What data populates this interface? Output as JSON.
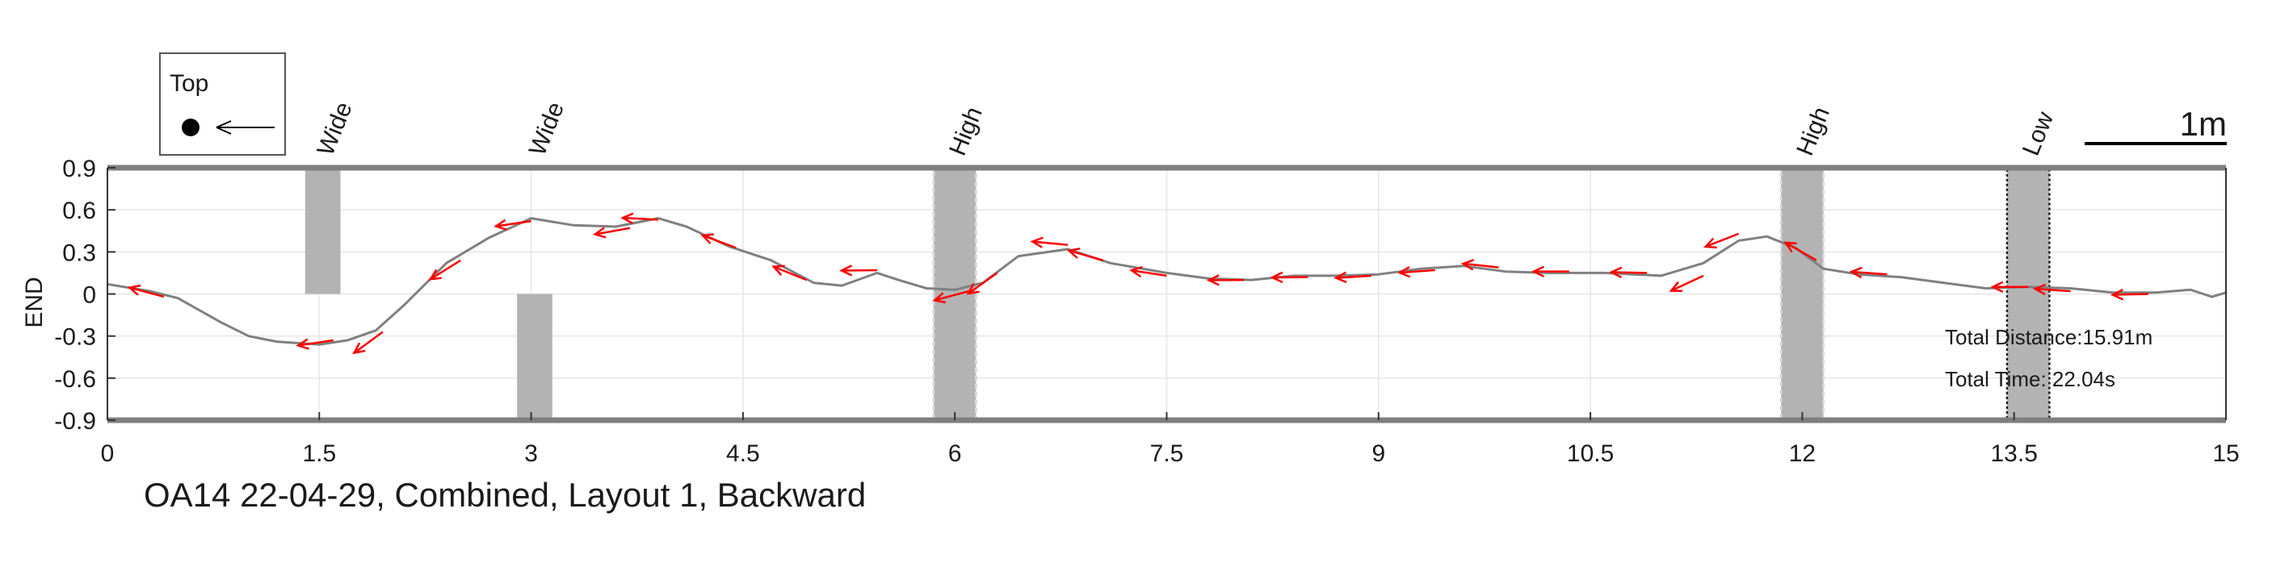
{
  "chart_data": {
    "type": "line",
    "title": "OA14 22-04-29, Combined, Layout 1, Backward",
    "xlabel": "",
    "ylabel": "END",
    "xlim": [
      0,
      15
    ],
    "ylim": [
      -0.9,
      0.9
    ],
    "xticks": [
      0,
      1.5,
      3,
      4.5,
      6,
      7.5,
      9,
      10.5,
      12,
      13.5,
      15
    ],
    "xtick_labels": [
      "0",
      "1.5",
      "3",
      "4.5",
      "6",
      "7.5",
      "9",
      "10.5",
      "12",
      "13.5",
      "15"
    ],
    "yticks": [
      0.9,
      0.6,
      0.3,
      0,
      -0.3,
      -0.6,
      -0.9
    ],
    "ytick_labels": [
      "0.9",
      "0.6",
      "0.3",
      "0",
      "-0.3",
      "-0.6",
      "-0.9"
    ],
    "grid": true,
    "series": [
      {
        "line_color": "#808080",
        "x": [
          0,
          0.3,
          0.5,
          0.8,
          1.0,
          1.2,
          1.5,
          1.7,
          1.9,
          2.1,
          2.4,
          2.7,
          3.0,
          3.3,
          3.6,
          3.9,
          4.1,
          4.4,
          4.7,
          5.0,
          5.2,
          5.45,
          5.6,
          5.8,
          6.0,
          6.2,
          6.45,
          6.8,
          7.1,
          7.5,
          7.8,
          8.1,
          8.4,
          8.7,
          9.0,
          9.3,
          9.6,
          9.9,
          10.2,
          10.6,
          11.0,
          11.3,
          11.55,
          11.75,
          11.95,
          12.15,
          12.4,
          12.7,
          13.0,
          13.3,
          13.6,
          13.9,
          14.2,
          14.5,
          14.75,
          14.9,
          15.0
        ],
        "y": [
          0.07,
          0.02,
          -0.03,
          -0.2,
          -0.3,
          -0.34,
          -0.36,
          -0.33,
          -0.26,
          -0.08,
          0.22,
          0.4,
          0.54,
          0.49,
          0.48,
          0.54,
          0.48,
          0.34,
          0.24,
          0.08,
          0.06,
          0.15,
          0.1,
          0.04,
          0.03,
          0.08,
          0.27,
          0.32,
          0.22,
          0.15,
          0.11,
          0.1,
          0.13,
          0.13,
          0.14,
          0.18,
          0.2,
          0.16,
          0.15,
          0.15,
          0.13,
          0.22,
          0.38,
          0.41,
          0.33,
          0.18,
          0.14,
          0.12,
          0.08,
          0.04,
          0.05,
          0.04,
          0.01,
          0.01,
          0.03,
          -0.02,
          0.01
        ]
      }
    ],
    "arrows": {
      "color": "#ff0000",
      "direction": "backward",
      "points": [
        [
          0.4,
          -0.02
        ],
        [
          1.6,
          -0.33
        ],
        [
          1.95,
          -0.27
        ],
        [
          2.5,
          0.24
        ],
        [
          3.0,
          0.52
        ],
        [
          3.7,
          0.47
        ],
        [
          3.9,
          0.53
        ],
        [
          4.45,
          0.33
        ],
        [
          4.95,
          0.1
        ],
        [
          5.45,
          0.17
        ],
        [
          6.1,
          0.02
        ],
        [
          6.3,
          0.15
        ],
        [
          6.8,
          0.35
        ],
        [
          7.05,
          0.24
        ],
        [
          7.5,
          0.13
        ],
        [
          8.05,
          0.1
        ],
        [
          8.5,
          0.12
        ],
        [
          8.95,
          0.13
        ],
        [
          9.4,
          0.17
        ],
        [
          9.85,
          0.19
        ],
        [
          10.35,
          0.16
        ],
        [
          10.9,
          0.15
        ],
        [
          11.3,
          0.13
        ],
        [
          11.55,
          0.43
        ],
        [
          12.1,
          0.24
        ],
        [
          12.6,
          0.14
        ],
        [
          13.6,
          0.05
        ],
        [
          13.9,
          0.02
        ],
        [
          14.45,
          0.0
        ]
      ]
    },
    "zones": [
      {
        "label": "Wide",
        "x": [
          1.4,
          1.65
        ],
        "y": [
          0,
          0.9
        ],
        "style": "plain"
      },
      {
        "label": "Wide",
        "x": [
          2.9,
          3.15
        ],
        "y": [
          -0.9,
          0
        ],
        "style": "plain"
      },
      {
        "label": "High",
        "x": [
          5.85,
          6.15
        ],
        "y": [
          -0.9,
          0.9
        ],
        "style": "dashed"
      },
      {
        "label": "High",
        "x": [
          11.85,
          12.15
        ],
        "y": [
          -0.9,
          0.9
        ],
        "style": "dashed"
      },
      {
        "label": "Low",
        "x": [
          13.45,
          13.75
        ],
        "y": [
          -0.9,
          0.9
        ],
        "style": "dotted"
      }
    ],
    "legend": {
      "title": "Top",
      "placement": "top-left"
    },
    "scale_bar": {
      "label": "1m",
      "length": 1
    },
    "annotations": [
      "Total Distance:15.91m",
      "Total Time: 22.04s"
    ]
  }
}
